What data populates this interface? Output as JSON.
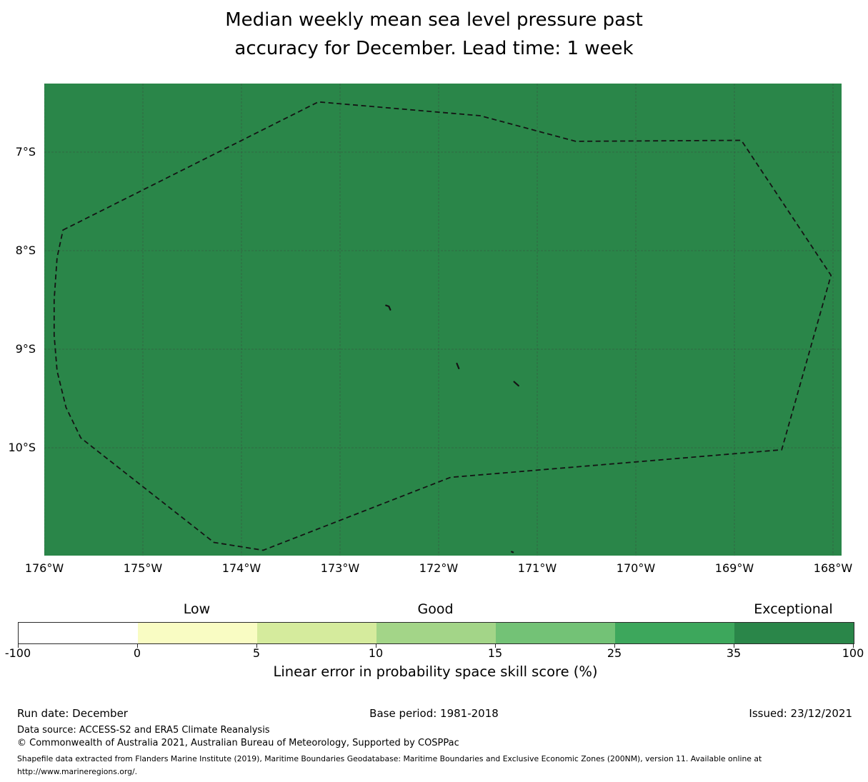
{
  "chart_data": {
    "type": "heatmap",
    "title_lines": [
      "Median weekly mean sea level pressure past",
      "accuracy for December. Lead time: 1 week"
    ],
    "map": {
      "projection": "lon-lat degrees, equal aspect",
      "extent": {
        "west": -176.0,
        "east": -167.913,
        "north": -6.304,
        "south": -11.094
      },
      "fill_color": "#2a8649",
      "fill_value_bin": "35-100",
      "fill_value_category": "Exceptional",
      "grid_color": "#3c3c3c",
      "boundary_color": "#141414",
      "x_ticks": [
        {
          "label": "176°W",
          "lon": -176
        },
        {
          "label": "175°W",
          "lon": -175
        },
        {
          "label": "174°W",
          "lon": -174
        },
        {
          "label": "173°W",
          "lon": -173
        },
        {
          "label": "172°W",
          "lon": -172
        },
        {
          "label": "171°W",
          "lon": -171
        },
        {
          "label": "170°W",
          "lon": -170
        },
        {
          "label": "169°W",
          "lon": -169
        },
        {
          "label": "168°W",
          "lon": -168
        }
      ],
      "y_ticks": [
        {
          "label": "7°S",
          "lat": -7
        },
        {
          "label": "8°S",
          "lat": -8
        },
        {
          "label": "9°S",
          "lat": -9
        },
        {
          "label": "10°S",
          "lat": -10
        }
      ],
      "eez_boundary_lonlat": [
        [
          -175.81,
          -7.79
        ],
        [
          -173.22,
          -6.49
        ],
        [
          -171.58,
          -6.63
        ],
        [
          -170.61,
          -6.89
        ],
        [
          -168.93,
          -6.88
        ],
        [
          -168.02,
          -8.25
        ],
        [
          -168.52,
          -10.02
        ],
        [
          -171.88,
          -10.3
        ],
        [
          -173.78,
          -11.04
        ],
        [
          -174.28,
          -10.96
        ],
        [
          -175.63,
          -9.9
        ],
        [
          -175.78,
          -9.59
        ],
        [
          -175.87,
          -9.22
        ],
        [
          -175.9,
          -8.86
        ],
        [
          -175.9,
          -8.5
        ],
        [
          -175.87,
          -8.07
        ]
      ],
      "islands": [
        [
          [
            -172.535,
            -8.555
          ],
          [
            -172.505,
            -8.565
          ],
          [
            -172.49,
            -8.6
          ]
        ],
        [
          [
            -171.815,
            -9.145
          ],
          [
            -171.795,
            -9.195
          ]
        ],
        [
          [
            -171.235,
            -9.33
          ],
          [
            -171.19,
            -9.37
          ]
        ],
        [
          [
            -171.26,
            -11.055
          ],
          [
            -171.245,
            -11.06
          ]
        ]
      ]
    },
    "colorbar": {
      "boundaries": [
        -100,
        0,
        5,
        10,
        15,
        25,
        35,
        100
      ],
      "tick_labels": [
        "-100",
        "0",
        "5",
        "10",
        "15",
        "25",
        "35",
        "100"
      ],
      "segment_colors": [
        "#ffffff",
        "#f9fcc3",
        "#d5eb9d",
        "#a3d588",
        "#73c276",
        "#3da75c",
        "#2a8649"
      ],
      "category_labels": [
        {
          "text": "Low",
          "segment_index": 1
        },
        {
          "text": "Good",
          "segment_index": 3
        },
        {
          "text": "Exceptional",
          "segment_index": 6
        }
      ],
      "axis_label": "Linear error in probability space skill score (%)"
    },
    "footer": {
      "run_date": "Run date: December",
      "base_period": "Base period: 1981-2018",
      "issued": "Issued: 23/12/2021",
      "data_source": "Data source: ACCESS-S2 and ERA5 Climate Reanalysis",
      "copyright": "© Commonwealth of Australia 2021, Australian Bureau of Meteorology, Supported by COSPPac",
      "shapefile_note": "Shapefile data extracted from Flanders Marine Institute (2019), Maritime Boundaries Geodatabase: Maritime Boundaries and Exclusive Economic Zones (200NM), version 11. Available online at http://www.marineregions.org/."
    }
  }
}
